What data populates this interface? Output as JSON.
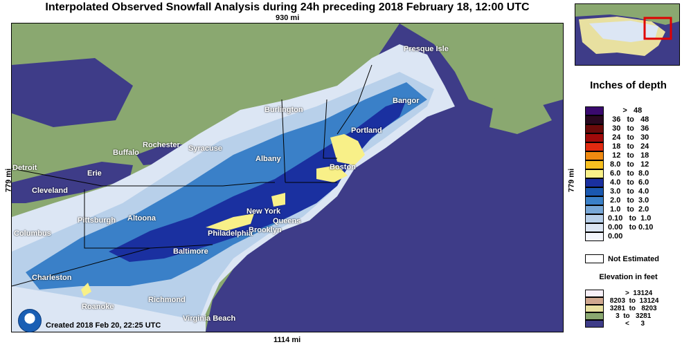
{
  "title": "Interpolated Observed Snowfall Analysis during 24h preceding 2018 February 18, 12:00 UTC",
  "distances": {
    "top": "930 mi",
    "bottom": "1114 mi",
    "left": "779 mi",
    "right": "779 mi"
  },
  "footer": {
    "created": "Created 2018 Feb 20, 22:25 UTC"
  },
  "cities": [
    {
      "name": "Presque Isle"
    },
    {
      "name": "Bangor"
    },
    {
      "name": "Burlington"
    },
    {
      "name": "Portland"
    },
    {
      "name": "Boston"
    },
    {
      "name": "Albany"
    },
    {
      "name": "Rochester"
    },
    {
      "name": "Syracuse"
    },
    {
      "name": "Buffalo"
    },
    {
      "name": "Detroit"
    },
    {
      "name": "Erie"
    },
    {
      "name": "Cleveland"
    },
    {
      "name": "New York"
    },
    {
      "name": "Queens"
    },
    {
      "name": "Brooklyn"
    },
    {
      "name": "Pittsburgh"
    },
    {
      "name": "Altoona"
    },
    {
      "name": "Philadelphia"
    },
    {
      "name": "Columbus"
    },
    {
      "name": "Baltimore"
    },
    {
      "name": "Charleston"
    },
    {
      "name": "Richmond"
    },
    {
      "name": "Roanoke"
    },
    {
      "name": "Virginia Beach"
    }
  ],
  "legend": {
    "title": "Inches of depth",
    "rows": [
      {
        "label": "       >   48",
        "color": "#3a0a6e"
      },
      {
        "label": "  36   to   48",
        "color": "#2a0820"
      },
      {
        "label": "  30   to   36",
        "color": "#6a0a0a"
      },
      {
        "label": "  24   to   30",
        "color": "#a00a0a"
      },
      {
        "label": "  18   to   24",
        "color": "#e02a10"
      },
      {
        "label": "  12   to   18",
        "color": "#f08a10"
      },
      {
        "label": " 8.0   to   12",
        "color": "#f8c020"
      },
      {
        "label": " 6.0   to  8.0",
        "color": "#f8f088"
      },
      {
        "label": " 4.0   to  6.0",
        "color": "#1a30a0"
      },
      {
        "label": " 3.0   to  4.0",
        "color": "#1a58b0"
      },
      {
        "label": " 2.0   to  3.0",
        "color": "#3a80c8"
      },
      {
        "label": " 1.0   to  2.0",
        "color": "#78a8d8"
      },
      {
        "label": "0.10   to  1.0",
        "color": "#b8d0ea"
      },
      {
        "label": "0.00   to 0.10",
        "color": "#dce6f4"
      },
      {
        "label": "0.00",
        "color": "#f4f6fc"
      }
    ],
    "not_estimated": "Not Estimated",
    "not_estimated_color": "#ffffff",
    "elevation_title": "Elevation in feet",
    "elevation_rows": [
      {
        "label": "         >  13124",
        "color": "#f8f0f8"
      },
      {
        "label": " 8203  to  13124",
        "color": "#d0a890"
      },
      {
        "label": " 3281  to   8203",
        "color": "#e8e0a0"
      },
      {
        "label": "    3  to   3281",
        "color": "#8aa870"
      },
      {
        "label": "         <      3",
        "color": "#3e3c88"
      }
    ]
  },
  "colors": {
    "ocean": "#3e3c88",
    "land": "#8aa870",
    "border": "#000000"
  }
}
